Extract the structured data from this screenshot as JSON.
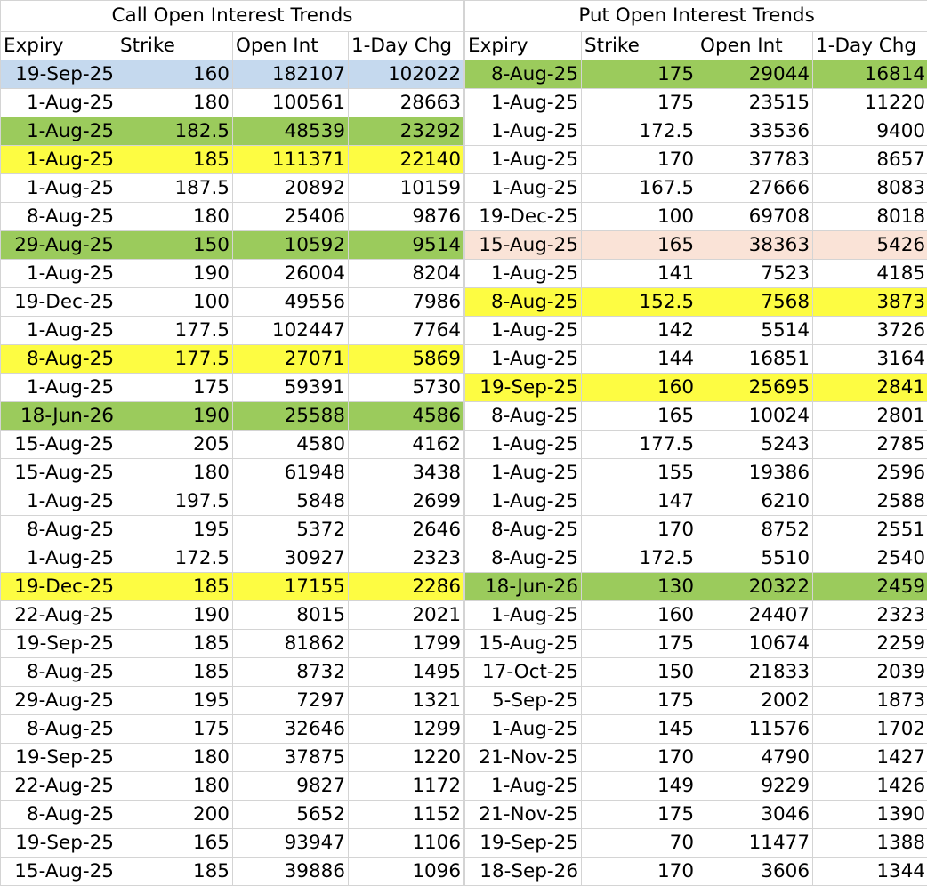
{
  "colors": {
    "blue": "#c5d9ee",
    "green": "#9bcb5c",
    "yellow": "#fdfc42",
    "peach": "#fae3d7",
    "grid": "#d4d4d4"
  },
  "calls": {
    "title": "Call Open Interest Trends",
    "headers": [
      "Expiry",
      "Strike",
      "Open Int",
      "1-Day Chg"
    ],
    "rows": [
      {
        "cells": [
          "19-Sep-25",
          "160",
          "182107",
          "102022"
        ],
        "hl": "blue"
      },
      {
        "cells": [
          "1-Aug-25",
          "180",
          "100561",
          "28663"
        ],
        "hl": ""
      },
      {
        "cells": [
          "1-Aug-25",
          "182.5",
          "48539",
          "23292"
        ],
        "hl": "green"
      },
      {
        "cells": [
          "1-Aug-25",
          "185",
          "111371",
          "22140"
        ],
        "hl": "yellow"
      },
      {
        "cells": [
          "1-Aug-25",
          "187.5",
          "20892",
          "10159"
        ],
        "hl": ""
      },
      {
        "cells": [
          "8-Aug-25",
          "180",
          "25406",
          "9876"
        ],
        "hl": ""
      },
      {
        "cells": [
          "29-Aug-25",
          "150",
          "10592",
          "9514"
        ],
        "hl": "green"
      },
      {
        "cells": [
          "1-Aug-25",
          "190",
          "26004",
          "8204"
        ],
        "hl": ""
      },
      {
        "cells": [
          "19-Dec-25",
          "100",
          "49556",
          "7986"
        ],
        "hl": ""
      },
      {
        "cells": [
          "1-Aug-25",
          "177.5",
          "102447",
          "7764"
        ],
        "hl": ""
      },
      {
        "cells": [
          "8-Aug-25",
          "177.5",
          "27071",
          "5869"
        ],
        "hl": "yellow"
      },
      {
        "cells": [
          "1-Aug-25",
          "175",
          "59391",
          "5730"
        ],
        "hl": ""
      },
      {
        "cells": [
          "18-Jun-26",
          "190",
          "25588",
          "4586"
        ],
        "hl": "green"
      },
      {
        "cells": [
          "15-Aug-25",
          "205",
          "4580",
          "4162"
        ],
        "hl": ""
      },
      {
        "cells": [
          "15-Aug-25",
          "180",
          "61948",
          "3438"
        ],
        "hl": ""
      },
      {
        "cells": [
          "1-Aug-25",
          "197.5",
          "5848",
          "2699"
        ],
        "hl": ""
      },
      {
        "cells": [
          "8-Aug-25",
          "195",
          "5372",
          "2646"
        ],
        "hl": ""
      },
      {
        "cells": [
          "1-Aug-25",
          "172.5",
          "30927",
          "2323"
        ],
        "hl": ""
      },
      {
        "cells": [
          "19-Dec-25",
          "185",
          "17155",
          "2286"
        ],
        "hl": "yellow"
      },
      {
        "cells": [
          "22-Aug-25",
          "190",
          "8015",
          "2021"
        ],
        "hl": ""
      },
      {
        "cells": [
          "19-Sep-25",
          "185",
          "81862",
          "1799"
        ],
        "hl": ""
      },
      {
        "cells": [
          "8-Aug-25",
          "185",
          "8732",
          "1495"
        ],
        "hl": ""
      },
      {
        "cells": [
          "29-Aug-25",
          "195",
          "7297",
          "1321"
        ],
        "hl": ""
      },
      {
        "cells": [
          "8-Aug-25",
          "175",
          "32646",
          "1299"
        ],
        "hl": ""
      },
      {
        "cells": [
          "19-Sep-25",
          "180",
          "37875",
          "1220"
        ],
        "hl": ""
      },
      {
        "cells": [
          "22-Aug-25",
          "180",
          "9827",
          "1172"
        ],
        "hl": ""
      },
      {
        "cells": [
          "8-Aug-25",
          "200",
          "5652",
          "1152"
        ],
        "hl": ""
      },
      {
        "cells": [
          "19-Sep-25",
          "165",
          "93947",
          "1106"
        ],
        "hl": ""
      },
      {
        "cells": [
          "15-Aug-25",
          "185",
          "39886",
          "1096"
        ],
        "hl": ""
      }
    ]
  },
  "puts": {
    "title": "Put Open Interest Trends",
    "headers": [
      "Expiry",
      "Strike",
      "Open Int",
      "1-Day Chg"
    ],
    "rows": [
      {
        "cells": [
          "8-Aug-25",
          "175",
          "29044",
          "16814"
        ],
        "hl": "green"
      },
      {
        "cells": [
          "1-Aug-25",
          "175",
          "23515",
          "11220"
        ],
        "hl": ""
      },
      {
        "cells": [
          "1-Aug-25",
          "172.5",
          "33536",
          "9400"
        ],
        "hl": ""
      },
      {
        "cells": [
          "1-Aug-25",
          "170",
          "37783",
          "8657"
        ],
        "hl": ""
      },
      {
        "cells": [
          "1-Aug-25",
          "167.5",
          "27666",
          "8083"
        ],
        "hl": ""
      },
      {
        "cells": [
          "19-Dec-25",
          "100",
          "69708",
          "8018"
        ],
        "hl": ""
      },
      {
        "cells": [
          "15-Aug-25",
          "165",
          "38363",
          "5426"
        ],
        "hl": "peach"
      },
      {
        "cells": [
          "1-Aug-25",
          "141",
          "7523",
          "4185"
        ],
        "hl": ""
      },
      {
        "cells": [
          "8-Aug-25",
          "152.5",
          "7568",
          "3873"
        ],
        "hl": "yellow"
      },
      {
        "cells": [
          "1-Aug-25",
          "142",
          "5514",
          "3726"
        ],
        "hl": ""
      },
      {
        "cells": [
          "1-Aug-25",
          "144",
          "16851",
          "3164"
        ],
        "hl": ""
      },
      {
        "cells": [
          "19-Sep-25",
          "160",
          "25695",
          "2841"
        ],
        "hl": "yellow"
      },
      {
        "cells": [
          "8-Aug-25",
          "165",
          "10024",
          "2801"
        ],
        "hl": ""
      },
      {
        "cells": [
          "1-Aug-25",
          "177.5",
          "5243",
          "2785"
        ],
        "hl": ""
      },
      {
        "cells": [
          "1-Aug-25",
          "155",
          "19386",
          "2596"
        ],
        "hl": ""
      },
      {
        "cells": [
          "1-Aug-25",
          "147",
          "6210",
          "2588"
        ],
        "hl": ""
      },
      {
        "cells": [
          "8-Aug-25",
          "170",
          "8752",
          "2551"
        ],
        "hl": ""
      },
      {
        "cells": [
          "8-Aug-25",
          "172.5",
          "5510",
          "2540"
        ],
        "hl": ""
      },
      {
        "cells": [
          "18-Jun-26",
          "130",
          "20322",
          "2459"
        ],
        "hl": "green"
      },
      {
        "cells": [
          "1-Aug-25",
          "160",
          "24407",
          "2323"
        ],
        "hl": ""
      },
      {
        "cells": [
          "15-Aug-25",
          "175",
          "10674",
          "2259"
        ],
        "hl": ""
      },
      {
        "cells": [
          "17-Oct-25",
          "150",
          "21833",
          "2039"
        ],
        "hl": ""
      },
      {
        "cells": [
          "5-Sep-25",
          "175",
          "2002",
          "1873"
        ],
        "hl": ""
      },
      {
        "cells": [
          "1-Aug-25",
          "145",
          "11576",
          "1702"
        ],
        "hl": ""
      },
      {
        "cells": [
          "21-Nov-25",
          "170",
          "4790",
          "1427"
        ],
        "hl": ""
      },
      {
        "cells": [
          "1-Aug-25",
          "149",
          "9229",
          "1426"
        ],
        "hl": ""
      },
      {
        "cells": [
          "21-Nov-25",
          "175",
          "3046",
          "1390"
        ],
        "hl": ""
      },
      {
        "cells": [
          "19-Sep-25",
          "70",
          "11477",
          "1388"
        ],
        "hl": ""
      },
      {
        "cells": [
          "18-Sep-26",
          "170",
          "3606",
          "1344"
        ],
        "hl": ""
      }
    ]
  }
}
